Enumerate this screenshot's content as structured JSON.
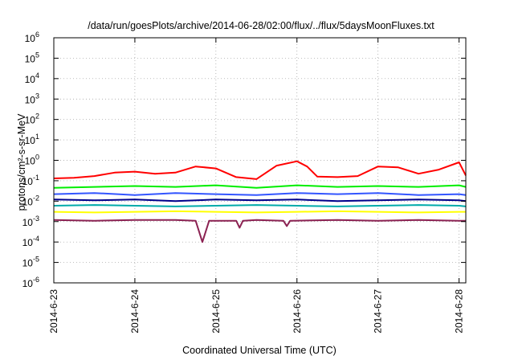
{
  "chart_data": {
    "type": "line",
    "title": "/data/run/goesPlots/archive/2014-06-28/02:00/flux/../flux/5daysMoonFluxes.txt",
    "xlabel": "Coordinated Universal Time (UTC)",
    "ylabel": "protons/cm²-s-sr-MeV",
    "yscale": "log",
    "ylim": [
      1e-06,
      1000000.0
    ],
    "y_ticks": [
      {
        "value": 1e-06,
        "base": "10",
        "exp": "-6"
      },
      {
        "value": 1e-05,
        "base": "10",
        "exp": "-5"
      },
      {
        "value": 0.0001,
        "base": "10",
        "exp": "-4"
      },
      {
        "value": 0.001,
        "base": "10",
        "exp": "-3"
      },
      {
        "value": 0.01,
        "base": "10",
        "exp": "-2"
      },
      {
        "value": 0.1,
        "base": "10",
        "exp": "-1"
      },
      {
        "value": 1,
        "base": "10",
        "exp": "0"
      },
      {
        "value": 10.0,
        "base": "10",
        "exp": "1"
      },
      {
        "value": 100.0,
        "base": "10",
        "exp": "2"
      },
      {
        "value": 1000.0,
        "base": "10",
        "exp": "3"
      },
      {
        "value": 10000.0,
        "base": "10",
        "exp": "4"
      },
      {
        "value": 100000.0,
        "base": "10",
        "exp": "5"
      },
      {
        "value": 1000000.0,
        "base": "10",
        "exp": "6"
      }
    ],
    "xlim": [
      "2014-06-23 00:00",
      "2014-06-28 02:00"
    ],
    "x_ticks": [
      "2014-6-23",
      "2014-6-24",
      "2014-6-25",
      "2014-6-26",
      "2014-6-27",
      "2014-6-28"
    ],
    "grid": true,
    "series": [
      {
        "color": "#ff0000",
        "values": [
          [
            "2014-06-23 00:00",
            0.13
          ],
          [
            "2014-06-23 06:00",
            0.14
          ],
          [
            "2014-06-23 12:00",
            0.17
          ],
          [
            "2014-06-23 18:00",
            0.25
          ],
          [
            "2014-06-24 00:00",
            0.28
          ],
          [
            "2014-06-24 06:00",
            0.22
          ],
          [
            "2014-06-24 12:00",
            0.25
          ],
          [
            "2014-06-24 18:00",
            0.5
          ],
          [
            "2014-06-25 00:00",
            0.4
          ],
          [
            "2014-06-25 06:00",
            0.15
          ],
          [
            "2014-06-25 12:00",
            0.12
          ],
          [
            "2014-06-25 18:00",
            0.55
          ],
          [
            "2014-06-26 00:00",
            0.9
          ],
          [
            "2014-06-26 03:00",
            0.5
          ],
          [
            "2014-06-26 06:00",
            0.16
          ],
          [
            "2014-06-26 12:00",
            0.15
          ],
          [
            "2014-06-26 18:00",
            0.17
          ],
          [
            "2014-06-27 00:00",
            0.5
          ],
          [
            "2014-06-27 06:00",
            0.45
          ],
          [
            "2014-06-27 12:00",
            0.22
          ],
          [
            "2014-06-27 18:00",
            0.35
          ],
          [
            "2014-06-28 00:00",
            0.8
          ],
          [
            "2014-06-28 02:00",
            0.18
          ]
        ]
      },
      {
        "color": "#00ee00",
        "values": [
          [
            "2014-06-23 00:00",
            0.045
          ],
          [
            "2014-06-23 12:00",
            0.05
          ],
          [
            "2014-06-24 00:00",
            0.055
          ],
          [
            "2014-06-24 12:00",
            0.05
          ],
          [
            "2014-06-25 00:00",
            0.06
          ],
          [
            "2014-06-25 12:00",
            0.045
          ],
          [
            "2014-06-26 00:00",
            0.06
          ],
          [
            "2014-06-26 12:00",
            0.05
          ],
          [
            "2014-06-27 00:00",
            0.055
          ],
          [
            "2014-06-27 12:00",
            0.05
          ],
          [
            "2014-06-28 00:00",
            0.06
          ],
          [
            "2014-06-28 02:00",
            0.05
          ]
        ]
      },
      {
        "color": "#3355ff",
        "values": [
          [
            "2014-06-23 00:00",
            0.022
          ],
          [
            "2014-06-23 12:00",
            0.025
          ],
          [
            "2014-06-24 00:00",
            0.02
          ],
          [
            "2014-06-24 12:00",
            0.025
          ],
          [
            "2014-06-25 00:00",
            0.022
          ],
          [
            "2014-06-25 12:00",
            0.02
          ],
          [
            "2014-06-26 00:00",
            0.025
          ],
          [
            "2014-06-26 12:00",
            0.022
          ],
          [
            "2014-06-27 00:00",
            0.025
          ],
          [
            "2014-06-27 12:00",
            0.02
          ],
          [
            "2014-06-28 00:00",
            0.022
          ],
          [
            "2014-06-28 02:00",
            0.02
          ]
        ]
      },
      {
        "color": "#00008b",
        "values": [
          [
            "2014-06-23 00:00",
            0.012
          ],
          [
            "2014-06-23 12:00",
            0.011
          ],
          [
            "2014-06-24 00:00",
            0.012
          ],
          [
            "2014-06-24 12:00",
            0.01
          ],
          [
            "2014-06-25 00:00",
            0.012
          ],
          [
            "2014-06-25 12:00",
            0.011
          ],
          [
            "2014-06-26 00:00",
            0.012
          ],
          [
            "2014-06-26 12:00",
            0.01
          ],
          [
            "2014-06-27 00:00",
            0.011
          ],
          [
            "2014-06-27 12:00",
            0.012
          ],
          [
            "2014-06-28 00:00",
            0.011
          ],
          [
            "2014-06-28 02:00",
            0.01
          ]
        ]
      },
      {
        "color": "#00aaaa",
        "values": [
          [
            "2014-06-23 00:00",
            0.006
          ],
          [
            "2014-06-23 12:00",
            0.0065
          ],
          [
            "2014-06-24 00:00",
            0.006
          ],
          [
            "2014-06-24 12:00",
            0.0055
          ],
          [
            "2014-06-25 00:00",
            0.006
          ],
          [
            "2014-06-25 12:00",
            0.0065
          ],
          [
            "2014-06-26 00:00",
            0.006
          ],
          [
            "2014-06-26 12:00",
            0.0055
          ],
          [
            "2014-06-27 00:00",
            0.006
          ],
          [
            "2014-06-27 12:00",
            0.0065
          ],
          [
            "2014-06-28 00:00",
            0.006
          ],
          [
            "2014-06-28 02:00",
            0.0055
          ]
        ]
      },
      {
        "color": "#ffff00",
        "values": [
          [
            "2014-06-23 00:00",
            0.003
          ],
          [
            "2014-06-23 12:00",
            0.0028
          ],
          [
            "2014-06-24 00:00",
            0.003
          ],
          [
            "2014-06-24 12:00",
            0.0032
          ],
          [
            "2014-06-25 00:00",
            0.003
          ],
          [
            "2014-06-25 12:00",
            0.0028
          ],
          [
            "2014-06-26 00:00",
            0.003
          ],
          [
            "2014-06-26 12:00",
            0.0032
          ],
          [
            "2014-06-27 00:00",
            0.003
          ],
          [
            "2014-06-27 12:00",
            0.0028
          ],
          [
            "2014-06-28 00:00",
            0.003
          ],
          [
            "2014-06-28 02:00",
            0.003
          ]
        ]
      },
      {
        "color": "#8b2252",
        "values": [
          [
            "2014-06-23 00:00",
            0.0012
          ],
          [
            "2014-06-23 12:00",
            0.0011
          ],
          [
            "2014-06-24 00:00",
            0.0012
          ],
          [
            "2014-06-24 12:00",
            0.0012
          ],
          [
            "2014-06-24 18:00",
            0.0011
          ],
          [
            "2014-06-24 20:00",
            0.0001
          ],
          [
            "2014-06-24 22:00",
            0.0011
          ],
          [
            "2014-06-25 06:00",
            0.0011
          ],
          [
            "2014-06-25 07:00",
            0.0005
          ],
          [
            "2014-06-25 08:00",
            0.0011
          ],
          [
            "2014-06-25 12:00",
            0.0012
          ],
          [
            "2014-06-25 20:00",
            0.0011
          ],
          [
            "2014-06-25 21:00",
            0.0006
          ],
          [
            "2014-06-25 22:00",
            0.0011
          ],
          [
            "2014-06-26 12:00",
            0.0012
          ],
          [
            "2014-06-27 00:00",
            0.0011
          ],
          [
            "2014-06-27 12:00",
            0.0012
          ],
          [
            "2014-06-28 00:00",
            0.0011
          ],
          [
            "2014-06-28 02:00",
            0.0011
          ]
        ]
      }
    ]
  }
}
